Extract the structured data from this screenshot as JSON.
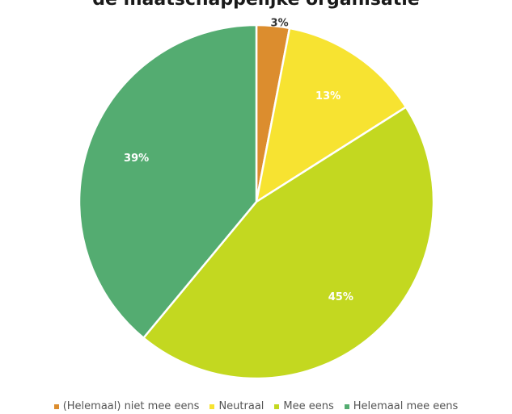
{
  "chart_data": {
    "type": "pie",
    "title": "de maatschappelijke organisatie",
    "slices": [
      {
        "label": "(Helemaal) niet mee eens",
        "value": 3,
        "display": "3%",
        "color": "#dc8d2e"
      },
      {
        "label": "Neutraal",
        "value": 13,
        "display": "13%",
        "color": "#f7e331"
      },
      {
        "label": "Mee eens",
        "value": 45,
        "display": "45%",
        "color": "#c3d820"
      },
      {
        "label": "Helemaal mee eens",
        "value": 39,
        "display": "39%",
        "color": "#54ac71"
      }
    ],
    "start_angle": "12 o'clock",
    "direction": "clockwise",
    "legend_position": "bottom"
  }
}
